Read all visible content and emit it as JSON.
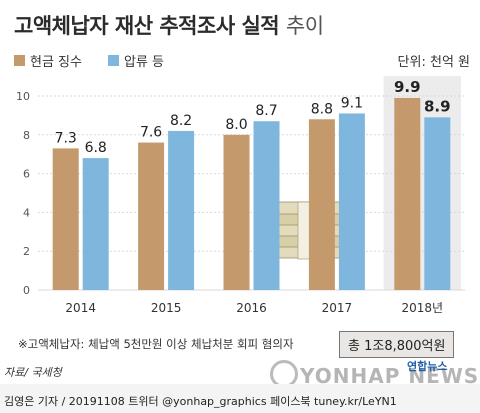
{
  "title": {
    "main": "고액체납자 재산 추적조사 실적",
    "suffix": "추이"
  },
  "legend": [
    {
      "label": "현금 징수",
      "color": "#c49a6c"
    },
    {
      "label": "압류 등",
      "color": "#7fb6dd"
    }
  ],
  "unit_label": "단위: 천억 원",
  "note": "※고액체납자: 체납액 5천만원 이상 체납처분 회피 혐의자",
  "total_label": "총 1조8,800억원",
  "source": "자료/ 국세청",
  "credit": "김영은 기자 / 20191108  트위터 @yonhap_graphics  페이스북 tuney.kr/LeYN1",
  "watermark": "YONHAP NEWS",
  "watermark_small": "연합뉴스",
  "chart_data": {
    "type": "bar",
    "categories": [
      "2014",
      "2015",
      "2016",
      "2017",
      "2018년"
    ],
    "series": [
      {
        "name": "현금 징수",
        "values": [
          7.3,
          7.6,
          8.0,
          8.8,
          9.9
        ],
        "color": "#c49a6c"
      },
      {
        "name": "압류 등",
        "values": [
          6.8,
          8.2,
          8.7,
          9.1,
          8.9
        ],
        "color": "#7fb6dd"
      }
    ],
    "value_labels": [
      [
        "7.3",
        "7.6",
        "8.0",
        "8.8",
        "9.9"
      ],
      [
        "6.8",
        "8.2",
        "8.7",
        "9.1",
        "8.9"
      ]
    ],
    "y_ticks": [
      "0",
      "2",
      "4",
      "6",
      "8",
      "10"
    ],
    "ylim": [
      0,
      10
    ],
    "highlight_last_category": true,
    "grid": true
  }
}
